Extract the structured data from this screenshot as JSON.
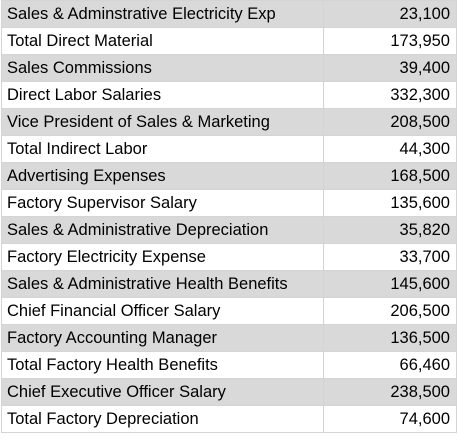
{
  "table": {
    "rows": [
      {
        "label": "Sales & Adminstrative Electricity Exp",
        "value": "23,100"
      },
      {
        "label": "Total Direct Material",
        "value": "173,950"
      },
      {
        "label": "Sales Commissions",
        "value": "39,400"
      },
      {
        "label": "Direct Labor Salaries",
        "value": "332,300"
      },
      {
        "label": "Vice President of Sales & Marketing",
        "value": "208,500"
      },
      {
        "label": "Total Indirect Labor",
        "value": "44,300"
      },
      {
        "label": "Advertising Expenses",
        "value": "168,500"
      },
      {
        "label": "Factory Supervisor Salary",
        "value": "135,600"
      },
      {
        "label": "Sales & Administrative Depreciation",
        "value": "35,820"
      },
      {
        "label": "Factory Electricity Expense",
        "value": "33,700"
      },
      {
        "label": "Sales & Administrative Health Benefits",
        "value": "145,600"
      },
      {
        "label": "Chief Financial Officer Salary",
        "value": "206,500"
      },
      {
        "label": "Factory Accounting Manager",
        "value": "136,500"
      },
      {
        "label": "Total Factory Health Benefits",
        "value": "66,460"
      },
      {
        "label": "Chief Executive Officer Salary",
        "value": "238,500"
      },
      {
        "label": "Total Factory Depreciation",
        "value": "74,600"
      }
    ],
    "colors": {
      "shaded_row": "#d9d9d9",
      "plain_row": "#ffffff",
      "gridline": "#d4d4d4",
      "text": "#000000"
    }
  }
}
